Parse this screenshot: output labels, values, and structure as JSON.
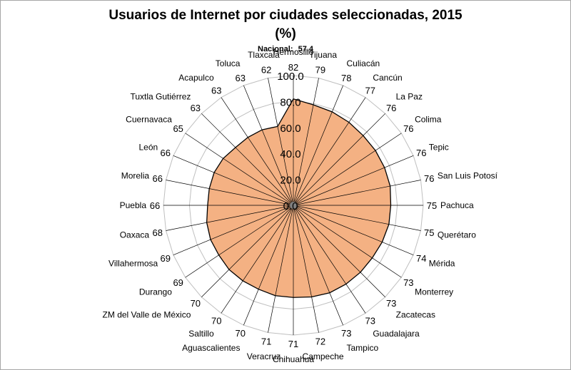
{
  "chart_data": {
    "type": "radar",
    "title_line1": "Usuarios de Internet por ciudades seleccionadas, 2015",
    "title_line2": "(%)",
    "annotation_label": "Nacional:",
    "annotation_value": "57.4",
    "categories": [
      "Hermosillo",
      "Tijuana",
      "Culiacán",
      "Cancún",
      "La Paz",
      "Colima",
      "Tepic",
      "San Luis Potosí",
      "Pachuca",
      "Querétaro",
      "Mérida",
      "Monterrey",
      "Zacatecas",
      "Guadalajara",
      "Tampico",
      "Campeche",
      "Chihuahua",
      "Veracruz",
      "Aguascalientes",
      "Saltillo",
      "ZM del Valle de México",
      "Durango",
      "Villahermosa",
      "Oaxaca",
      "Puebla",
      "Morelia",
      "León",
      "Cuernavaca",
      "Tuxtla Gutiérrez",
      "Acapulco",
      "Toluca",
      "Tlaxcala"
    ],
    "values": [
      82,
      79,
      78,
      77,
      76,
      76,
      76,
      76,
      75,
      75,
      74,
      73,
      73,
      73,
      73,
      72,
      71,
      71,
      70,
      70,
      70,
      69,
      69,
      68,
      66,
      66,
      66,
      65,
      63,
      63,
      63,
      62
    ],
    "r_ticks": [
      "0.0",
      "20.0",
      "40.0",
      "60.0",
      "80.0",
      "100.0"
    ],
    "r_min": 0,
    "r_max": 100,
    "grid": true,
    "colors": {
      "fill": "#f4b183",
      "stroke": "#000000",
      "grid": "#bfbfbf",
      "spoke": "#000000"
    }
  }
}
